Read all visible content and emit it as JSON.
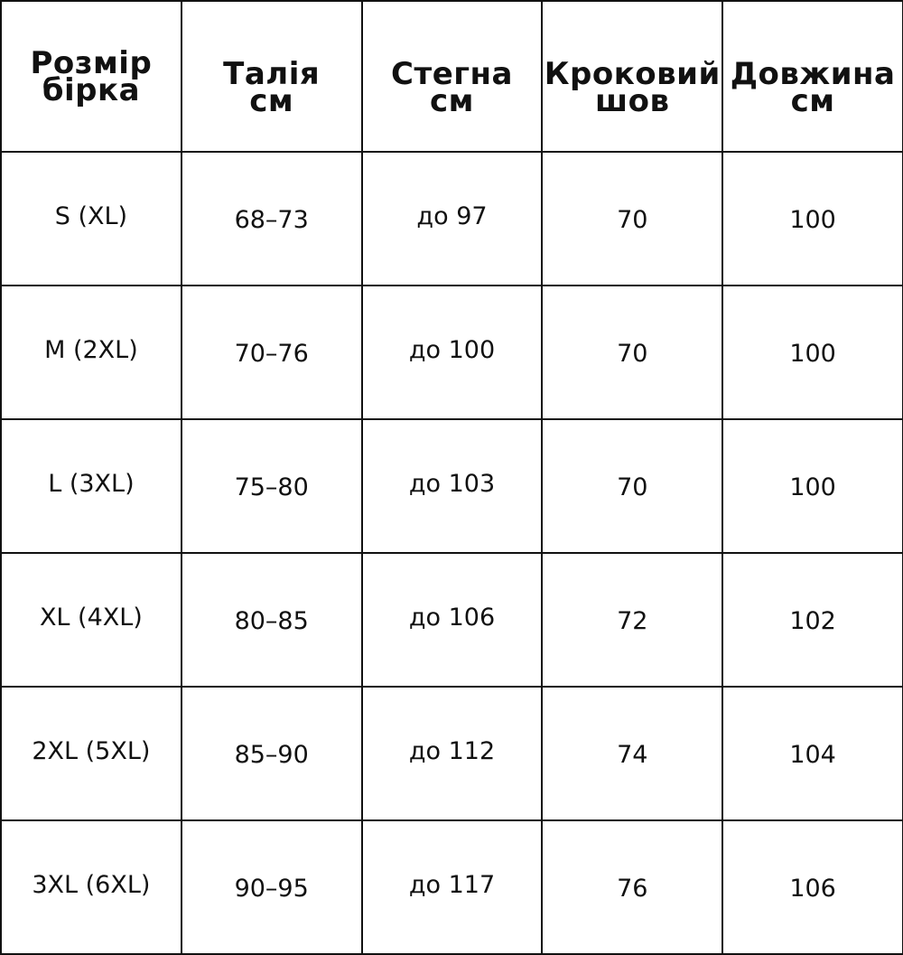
{
  "headers": [
    {
      "line1": "Розмір",
      "line2": "бірка"
    },
    {
      "line1": "Талія",
      "line2": "см"
    },
    {
      "line1": "Стегна",
      "line2": "см"
    },
    {
      "line1": "Кроковий",
      "line2": "шов"
    },
    {
      "line1": "Довжина",
      "line2": "см"
    }
  ],
  "rows": [
    [
      "S (XL)",
      "68–73",
      "до 97",
      "70",
      "100"
    ],
    [
      "M (2XL)",
      "70–76",
      "до 100",
      "70",
      "100"
    ],
    [
      "L (3XL)",
      "75–80",
      "до 103",
      "70",
      "100"
    ],
    [
      "XL (4XL)",
      "80–85",
      "до 106",
      "72",
      "102"
    ],
    [
      "2XL (5XL)",
      "85–90",
      "до 112",
      "74",
      "104"
    ],
    [
      "3XL (6XL)",
      "90–95",
      "до 117",
      "76",
      "106"
    ]
  ]
}
